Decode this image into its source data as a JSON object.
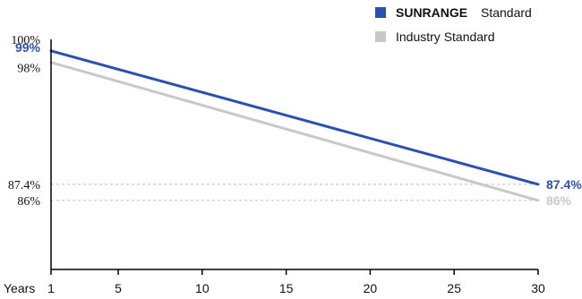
{
  "chart_data": {
    "type": "line",
    "x": [
      1,
      30
    ],
    "xlabel": "Years",
    "x_ticks": [
      1,
      5,
      10,
      15,
      20,
      25,
      30
    ],
    "x_tick_labels": [
      "1",
      "5",
      "10",
      "15",
      "20",
      "25",
      "30"
    ],
    "ylim": [
      80,
      100
    ],
    "y_ticks": [
      100,
      98,
      87.4,
      86
    ],
    "y_tick_labels": [
      "100%",
      "98%",
      "87.4%",
      "86%"
    ],
    "gridlines": [
      87.4,
      86
    ],
    "legend_placement": "top-right",
    "series": [
      {
        "legend_brand": "SUNRANGE",
        "legend_suffix": "Standard",
        "color": "#2b50b5",
        "values": [
          99,
          87.4
        ],
        "start_label": "99%",
        "end_label": "87.4%"
      },
      {
        "name": "Industry Standard",
        "color": "#c8c8c8",
        "values": [
          98,
          86
        ],
        "end_label": "86%"
      }
    ]
  }
}
